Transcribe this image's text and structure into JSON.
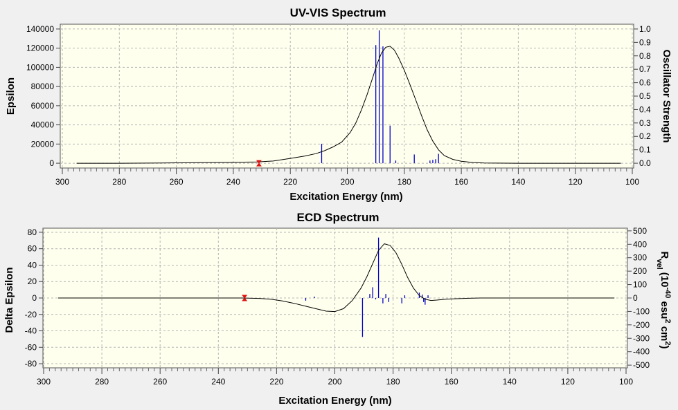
{
  "colors": {
    "background": "#f0f0f0",
    "plot_background": "#ffffee",
    "grid": "#b4b4b4",
    "curve": "#000000",
    "sticks": "#0000c8",
    "marker": "#e01010"
  },
  "chart_data": [
    {
      "id": "uv",
      "type": "line",
      "title": "UV-VIS Spectrum",
      "xlabel": "Excitation Energy (nm)",
      "ylabel": "Epsilon",
      "y2label": "Oscillator Strength",
      "xlim": [
        300,
        100
      ],
      "ylim": [
        -5000,
        145000
      ],
      "y2lim": [
        -0.0357,
        1.0357
      ],
      "xticks": [
        "300",
        "280",
        "260",
        "240",
        "220",
        "200",
        "180",
        "160",
        "140",
        "120",
        "100"
      ],
      "xtick_values": [
        300,
        280,
        260,
        240,
        220,
        200,
        180,
        160,
        140,
        120,
        100
      ],
      "yticks": [
        "0",
        "20000",
        "40000",
        "60000",
        "80000",
        "100000",
        "120000",
        "140000"
      ],
      "ytick_values": [
        0,
        20000,
        40000,
        60000,
        80000,
        100000,
        120000,
        140000
      ],
      "y2ticks": [
        "0.0",
        "0.1",
        "0.2",
        "0.3",
        "0.4",
        "0.5",
        "0.6",
        "0.7",
        "0.8",
        "0.9",
        "1.0"
      ],
      "y2tick_values": [
        0,
        0.1,
        0.2,
        0.3,
        0.4,
        0.5,
        0.6,
        0.7,
        0.8,
        0.9,
        1.0
      ],
      "curve": {
        "x": [
          295,
          280,
          265,
          250,
          240,
          232,
          226,
          220,
          215,
          211,
          208,
          205,
          202,
          199,
          197,
          195,
          193,
          191,
          189.5,
          188,
          186.5,
          185,
          183.5,
          182,
          180,
          178,
          176,
          174,
          172,
          170,
          168,
          166,
          163,
          160,
          156,
          152,
          148,
          140,
          130,
          120,
          110,
          104
        ],
        "y": [
          0,
          0,
          200,
          700,
          1000,
          1300,
          2300,
          5000,
          7500,
          10000,
          13000,
          17000,
          22000,
          32000,
          42000,
          56000,
          72000,
          90000,
          104000,
          115000,
          121000,
          122000,
          118000,
          110000,
          97000,
          82000,
          66000,
          50000,
          35000,
          23000,
          14000,
          8000,
          4000,
          2000,
          800,
          300,
          100,
          0,
          0,
          0,
          0,
          0
        ]
      },
      "sticks": [
        {
          "x": 209,
          "y": 0.145
        },
        {
          "x": 190,
          "y": 0.88
        },
        {
          "x": 188.8,
          "y": 0.99
        },
        {
          "x": 187.5,
          "y": 0.87
        },
        {
          "x": 185,
          "y": 0.28
        },
        {
          "x": 183,
          "y": 0.02
        },
        {
          "x": 176.5,
          "y": 0.065
        },
        {
          "x": 171,
          "y": 0.02
        },
        {
          "x": 170,
          "y": 0.025
        },
        {
          "x": 169,
          "y": 0.03
        },
        {
          "x": 168,
          "y": 0.07
        }
      ],
      "marker": {
        "x": 231,
        "y": 0
      }
    },
    {
      "id": "ecd",
      "type": "line",
      "title": "ECD Spectrum",
      "xlabel": "Excitation Energy (nm)",
      "ylabel": "Delta Epsilon",
      "y2label_parts": [
        "R",
        "vel",
        " (10",
        "-40",
        " esu",
        "2",
        " cm",
        "2",
        ")"
      ],
      "xlim": [
        300,
        100
      ],
      "ylim": [
        -85,
        85
      ],
      "y2lim": [
        -520,
        520
      ],
      "xticks": [
        "300",
        "280",
        "260",
        "240",
        "220",
        "200",
        "180",
        "160",
        "140",
        "120",
        "100"
      ],
      "xtick_values": [
        300,
        280,
        260,
        240,
        220,
        200,
        180,
        160,
        140,
        120,
        100
      ],
      "yticks": [
        "-80",
        "-60",
        "-40",
        "-20",
        "0",
        "20",
        "40",
        "60",
        "80"
      ],
      "ytick_values": [
        -80,
        -60,
        -40,
        -20,
        0,
        20,
        40,
        60,
        80
      ],
      "y2ticks": [
        "-500",
        "-400",
        "-300",
        "-200",
        "-100",
        "0",
        "100",
        "200",
        "300",
        "400",
        "500"
      ],
      "y2tick_values": [
        -500,
        -400,
        -300,
        -200,
        -100,
        0,
        100,
        200,
        300,
        400,
        500
      ],
      "curve": {
        "x": [
          295,
          260,
          240,
          232,
          226,
          222,
          218,
          214,
          210,
          206,
          203,
          200,
          197,
          194,
          191,
          189,
          187,
          185,
          183,
          181,
          179,
          177,
          175,
          173,
          171,
          169,
          167,
          165,
          162,
          158,
          154,
          150,
          140,
          130,
          120,
          110,
          104
        ],
        "y": [
          0,
          0,
          0,
          0,
          -0.5,
          -1.5,
          -3.5,
          -6.5,
          -10,
          -13.5,
          -16,
          -16.5,
          -13,
          -3,
          12,
          26,
          42,
          58,
          66,
          64,
          55,
          41,
          25,
          12,
          3,
          -1.5,
          -3,
          -2.5,
          -1.5,
          -0.8,
          -0.3,
          0,
          0,
          0,
          0,
          0,
          0
        ]
      },
      "sticks": [
        {
          "x": 210,
          "y": -20
        },
        {
          "x": 207,
          "y": 10
        },
        {
          "x": 190.5,
          "y": -290
        },
        {
          "x": 188,
          "y": 30
        },
        {
          "x": 187,
          "y": 80
        },
        {
          "x": 186,
          "y": -10
        },
        {
          "x": 185,
          "y": 450
        },
        {
          "x": 183.5,
          "y": -40
        },
        {
          "x": 182.5,
          "y": 30
        },
        {
          "x": 181.5,
          "y": -30
        },
        {
          "x": 177,
          "y": -40
        },
        {
          "x": 176,
          "y": 20
        },
        {
          "x": 171,
          "y": 40
        },
        {
          "x": 170,
          "y": 25
        },
        {
          "x": 169.5,
          "y": -30
        },
        {
          "x": 169,
          "y": -50
        },
        {
          "x": 168,
          "y": 20
        }
      ],
      "marker": {
        "x": 231,
        "y": 0
      }
    }
  ]
}
